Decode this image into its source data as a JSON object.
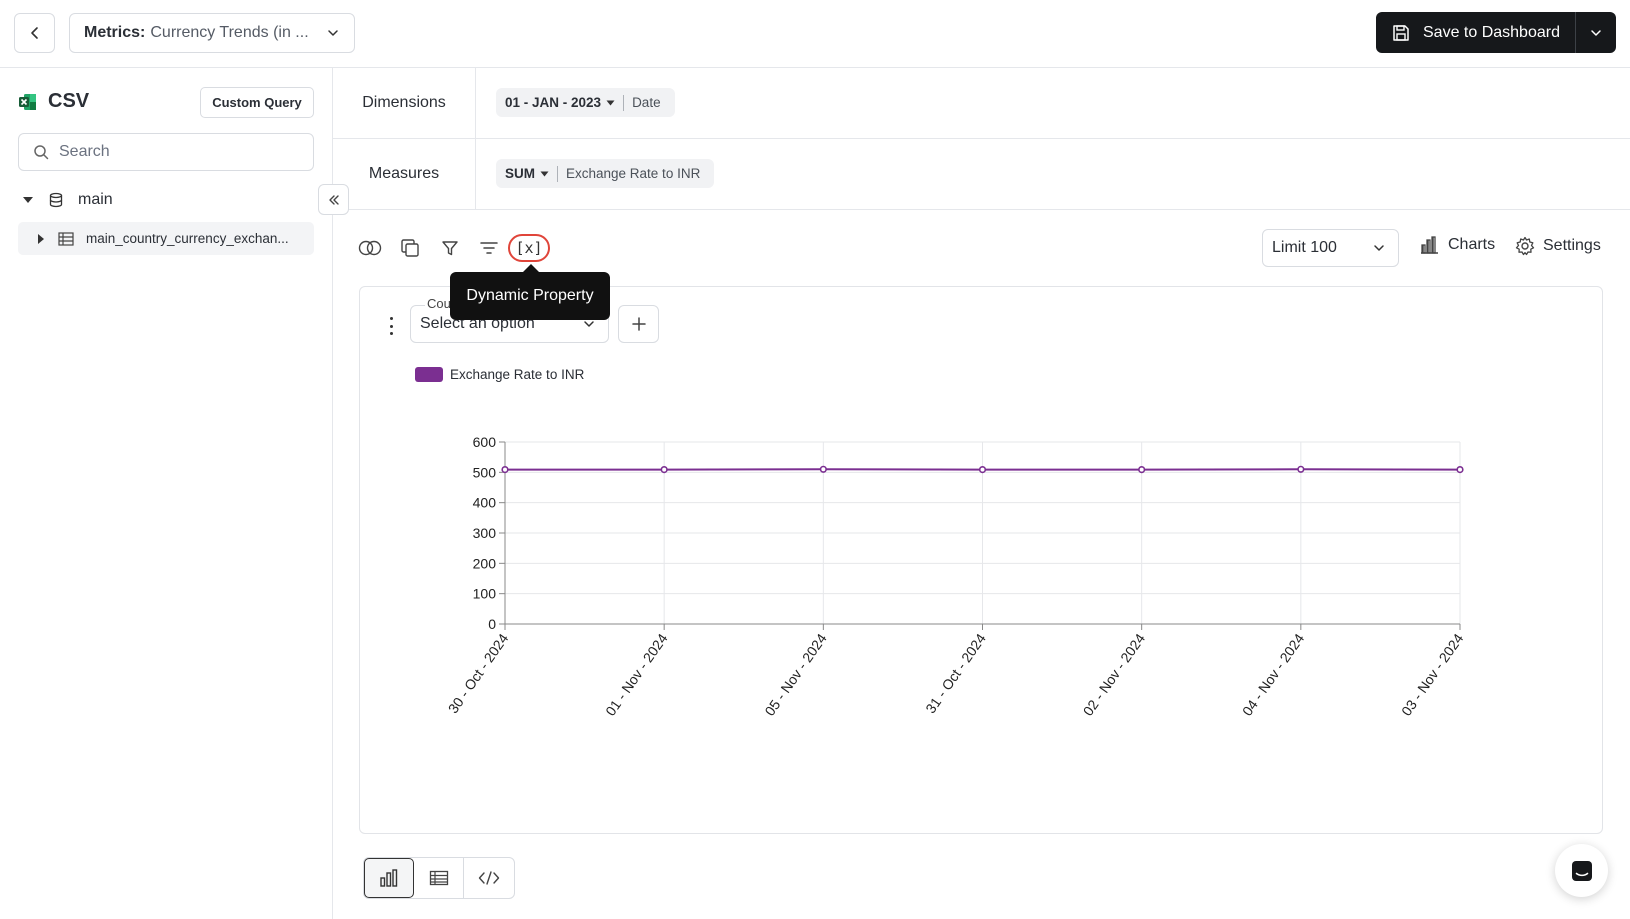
{
  "header": {
    "metric_label": "Metrics:",
    "metric_value": "Currency Trends (in ...",
    "save_label": "Save to Dashboard"
  },
  "sidebar": {
    "source_title": "CSV",
    "custom_query_label": "Custom Query",
    "search_placeholder": "Search",
    "schema_name": "main",
    "table_name": "main_country_currency_exchan..."
  },
  "query": {
    "dimensions_label": "Dimensions",
    "dimension_agg": "01 - JAN - 2023",
    "dimension_field": "Date",
    "measures_label": "Measures",
    "measure_agg": "SUM",
    "measure_field": "Exchange Rate to INR"
  },
  "toolbar": {
    "dynamic_label": "[x]",
    "tooltip": "Dynamic Property",
    "limit_label": "Limit 100",
    "charts_label": "Charts",
    "settings_label": "Settings"
  },
  "filter": {
    "label": "Cou",
    "placeholder": "Select an option"
  },
  "colors": {
    "series": "#7b2f91",
    "accent_red": "#e0453a",
    "dark_button": "#16181b"
  },
  "chart_data": {
    "type": "line",
    "categories": [
      "30 - Oct - 2024",
      "01 - Nov - 2024",
      "05 - Nov - 2024",
      "31 - Oct - 2024",
      "02 - Nov - 2024",
      "04 - Nov - 2024",
      "03 - Nov - 2024"
    ],
    "series": [
      {
        "name": "Exchange Rate to INR",
        "values": [
          509,
          509,
          510,
          509,
          509,
          510,
          509
        ]
      }
    ],
    "yticks": [
      0,
      100,
      200,
      300,
      400,
      500,
      600
    ],
    "ylim": [
      0,
      600
    ],
    "grid": true,
    "legend": "top-left"
  }
}
